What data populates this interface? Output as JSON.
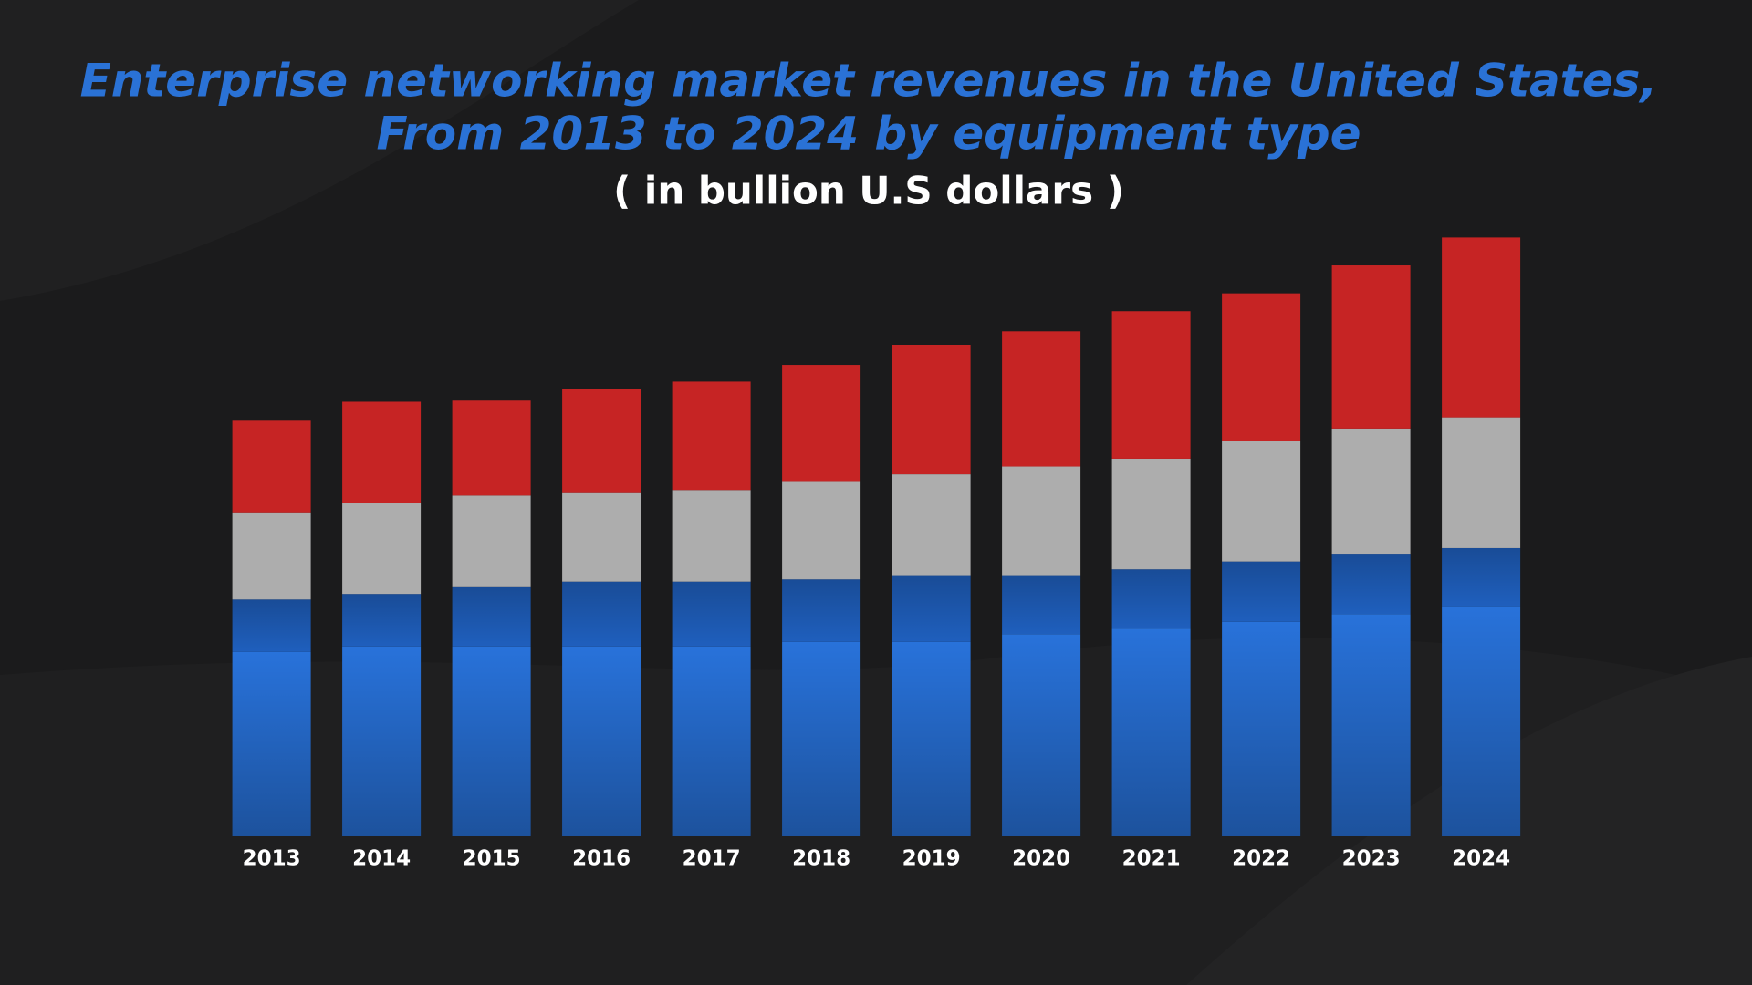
{
  "chart_data": {
    "type": "stacked-bar",
    "title": [
      "Enterprise networking market revenues in the United States,",
      "From 2013 to 2024 by equipment type"
    ],
    "subtitle": "( in bullion U.S dollars )",
    "categories": [
      "2013",
      "2014",
      "2015",
      "2016",
      "2017",
      "2018",
      "2019",
      "2020",
      "2021",
      "2022",
      "2023",
      "2024"
    ],
    "series": [
      {
        "color": "#2872da",
        "values": [
          16.5,
          17.0,
          17.0,
          17.0,
          17.0,
          17.4,
          17.4,
          18.1,
          18.6,
          19.2,
          19.9,
          20.6
        ]
      },
      {
        "color": "#1f5fbd",
        "values": [
          4.7,
          4.7,
          5.3,
          5.8,
          5.8,
          5.6,
          5.9,
          5.2,
          5.3,
          5.4,
          5.4,
          5.2
        ]
      },
      {
        "color": "#adadad",
        "values": [
          7.8,
          8.1,
          8.2,
          8.0,
          8.2,
          8.8,
          9.1,
          9.8,
          9.9,
          10.8,
          11.2,
          11.7
        ]
      },
      {
        "color": "#c62424",
        "values": [
          8.2,
          9.1,
          8.5,
          9.2,
          9.7,
          10.4,
          11.6,
          12.1,
          13.2,
          13.2,
          14.6,
          16.1
        ]
      }
    ],
    "ylim": [
      0,
      60
    ]
  }
}
